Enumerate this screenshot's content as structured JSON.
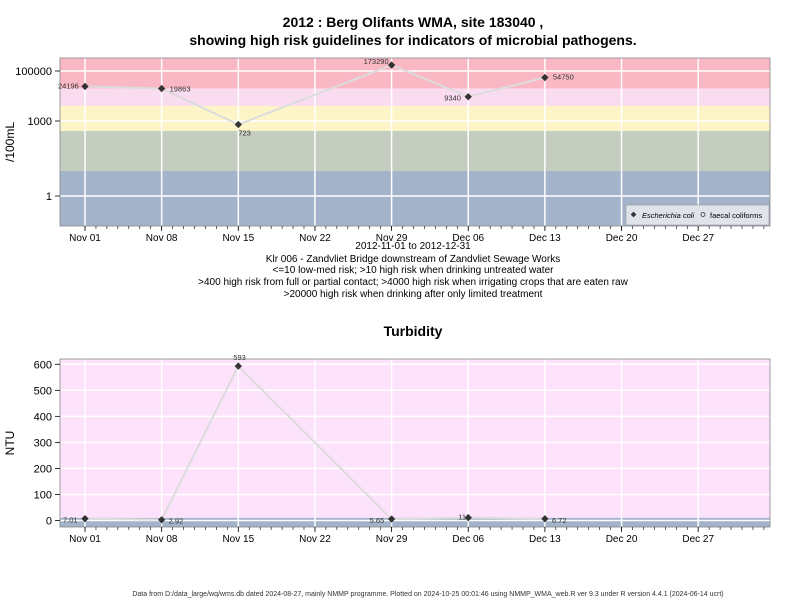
{
  "header": {
    "title_line1": "2012 : Berg Olifants WMA, site 183040 ,",
    "title_line2": "showing high risk guidelines for indicators of microbial pathogens."
  },
  "captions": [
    "2012-11-01 to 2012-12-31",
    "Klr 006 - Zandvliet Bridge downstream of Zandvliet Sewage Works",
    "<=10 low-med risk; >10 high risk when drinking untreated water",
    ">400 high risk from full or partial contact; >4000 high risk when irrigating crops that are eaten raw",
    ">20000 high risk when drinking after only limited treatment"
  ],
  "footer": "Data from D:/data_large/wq/wms.db dated 2024-08-27, mainly NMMP programme. Plotted on 2024-10-25 00:01:46 using NMMP_WMA_web.R ver 9.3 under R version 4.4.1 (2024-06-14 ucrt)",
  "colors": {
    "band_red": "#f9b8c4",
    "band_pink": "#fadcf0",
    "band_yellow": "#fdf5c8",
    "band_olive": "#c4cdbf",
    "band_blue": "#a2b3ca",
    "turb_bg": "#fde2fb",
    "line": "#dcdcdc",
    "grid": "#ffffff",
    "point": "#333333"
  },
  "chart_data": [
    {
      "type": "line",
      "ylabel": "/100mL",
      "y_scale": "log",
      "x_ticks": [
        "Nov 01",
        "Nov 08",
        "Nov 15",
        "Nov 22",
        "Nov 29",
        "Dec 06",
        "Dec 13",
        "Dec 20",
        "Dec 27"
      ],
      "y_ticks": [
        "100000",
        "1000",
        "1"
      ],
      "risk_thresholds": [
        10,
        400,
        4000,
        20000
      ],
      "legend": {
        "position": "bottom-right",
        "items": [
          "Escherichia coli",
          "faecal coliforms"
        ]
      },
      "series": [
        {
          "name": "Escherichia coli",
          "points": [
            {
              "x": "2012-11-01",
              "y": 24196,
              "label": "24196"
            },
            {
              "x": "2012-11-08",
              "y": 19863,
              "label": "19863"
            },
            {
              "x": "2012-11-15",
              "y": 723,
              "label": "723"
            },
            {
              "x": "2012-11-29",
              "y": 173290,
              "label": "173290"
            },
            {
              "x": "2012-12-06",
              "y": 9340,
              "label": "9340"
            },
            {
              "x": "2012-12-13",
              "y": 54750,
              "label": "54750"
            }
          ]
        }
      ]
    },
    {
      "type": "line",
      "title": "Turbidity",
      "ylabel": "NTU",
      "x_ticks": [
        "Nov 01",
        "Nov 08",
        "Nov 15",
        "Nov 22",
        "Nov 29",
        "Dec 06",
        "Dec 13",
        "Dec 20",
        "Dec 27"
      ],
      "y_ticks": [
        "600",
        "500",
        "400",
        "300",
        "200",
        "100",
        "0"
      ],
      "ylim": [
        -25,
        620
      ],
      "series": [
        {
          "name": "Turbidity",
          "points": [
            {
              "x": "2012-11-01",
              "y": 7.01,
              "label": "7.01"
            },
            {
              "x": "2012-11-08",
              "y": 2.92,
              "label": "2.92"
            },
            {
              "x": "2012-11-15",
              "y": 593,
              "label": "593"
            },
            {
              "x": "2012-11-29",
              "y": 5.65,
              "label": "5.65"
            },
            {
              "x": "2012-12-06",
              "y": 11,
              "label": "11"
            },
            {
              "x": "2012-12-13",
              "y": 6.72,
              "label": "6.72"
            }
          ]
        }
      ]
    }
  ]
}
